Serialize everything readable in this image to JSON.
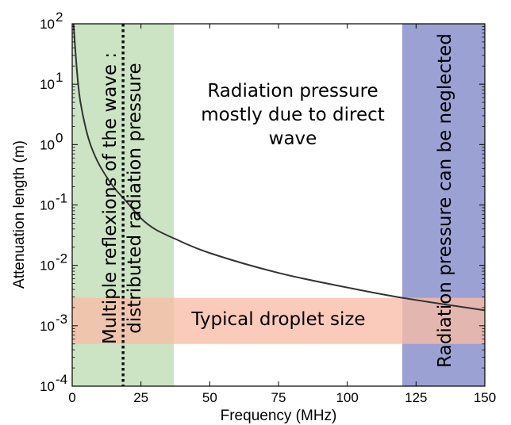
{
  "chart_data": {
    "type": "line",
    "xlabel": "Frequency (MHz)",
    "ylabel": "Attenuation length (m)",
    "xlim": [
      0,
      150
    ],
    "ylim": [
      0.0001,
      100
    ],
    "yscale": "log",
    "grid": false,
    "x_ticks": [
      "0",
      "25",
      "50",
      "75",
      "100",
      "125",
      "150"
    ],
    "y_ticks": [
      {
        "base": "10",
        "exp": "-4"
      },
      {
        "base": "10",
        "exp": "-3"
      },
      {
        "base": "10",
        "exp": "-2"
      },
      {
        "base": "10",
        "exp": "-1"
      },
      {
        "base": "10",
        "exp": "0"
      },
      {
        "base": "10",
        "exp": "1"
      },
      {
        "base": "10",
        "exp": "2"
      }
    ],
    "series": [
      {
        "x": [
          0.5,
          1,
          2,
          3,
          5,
          7,
          10,
          15,
          20,
          25,
          30,
          37,
          50,
          75,
          100,
          120,
          150
        ],
        "y": [
          100,
          45,
          12,
          5,
          1.8,
          0.9,
          0.45,
          0.2,
          0.11,
          0.06,
          0.04,
          0.028,
          0.016,
          0.0075,
          0.0043,
          0.0029,
          0.0018
        ],
        "color": "#333333"
      }
    ],
    "regions": [
      {
        "x_range": [
          0,
          37
        ],
        "color": "#cce4c4",
        "label": ""
      },
      {
        "x_range": [
          120,
          150
        ],
        "color": "#9ba1d2",
        "label": "Radiation pressure can be neglected"
      },
      {
        "y_range": [
          0.0005,
          0.0029
        ],
        "color": "#f8bda6",
        "label": "Typical droplet size"
      }
    ],
    "vertical_line": {
      "x": 18.5,
      "style": "dotted"
    },
    "annotations": {
      "left_band_line1": "Multiple reflexions of the wave :",
      "left_band_line2": "distributed radiation pressure",
      "center_line1": "Radiation pressure",
      "center_line2": "mostly due to direct",
      "center_line3": "wave",
      "right_band": "Radiation pressure can be neglected",
      "horizontal_band": "Typical droplet size"
    }
  }
}
